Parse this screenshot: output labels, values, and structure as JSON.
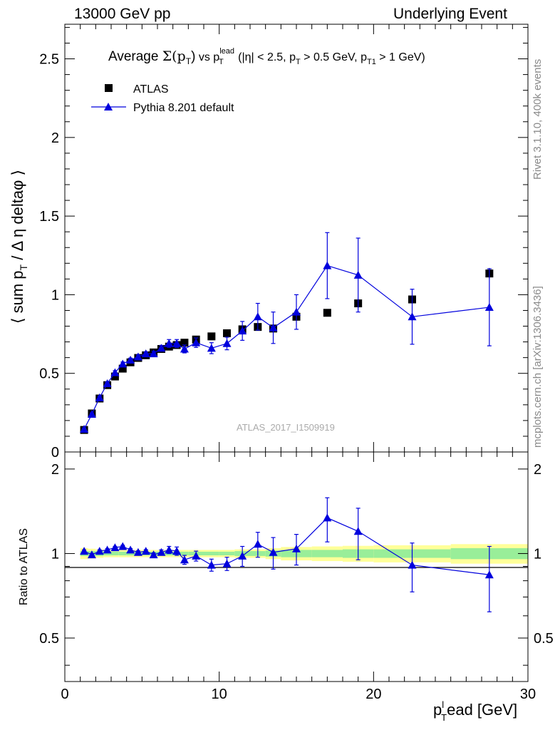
{
  "header": {
    "left": "13000 GeV pp",
    "right": "Underlying Event"
  },
  "side_labels": {
    "rivet": "Rivet 3.1.10,  400k events",
    "mcplots": "mcplots.cern.ch [arXiv:1306.3436]"
  },
  "chart_data": {
    "type": "scatter",
    "title_parts": {
      "pre": "Average ",
      "sigma": "Σ(p",
      "sigma_sub": "T",
      "sigma_close": ")",
      "vs": " vs p",
      "vs_sub": "T",
      "vs_sup": "lead",
      "cuts_1": " (|η| < 2.5, p",
      "cuts_1_sub": "T",
      "cuts_2": " > 0.5 GeV, p",
      "cuts_2_sub": "T1",
      "cuts_3": " > 1 GeV)"
    },
    "ylabel": "⟨ sum p_T / Δ η deltaφ ⟩",
    "ylabel_parts": {
      "pre": "⟨ sum p",
      "sub": "T",
      "post": " / Δ η deltaφ ⟩"
    },
    "xlabel_parts": {
      "main": "p",
      "sup": "l",
      "sub": "T",
      "post": "ead [GeV]"
    },
    "ratio_ylabel": "Ratio to ATLAS",
    "watermark": "ATLAS_2017_I1509919",
    "xlim": [
      0,
      30
    ],
    "ylim": [
      0,
      2.72
    ],
    "ratio_ylim": [
      0.35,
      2.3
    ],
    "x_ticks": [
      0,
      10,
      20,
      30
    ],
    "y_ticks": [
      0,
      0.5,
      1,
      1.5,
      2,
      2.5
    ],
    "y_tick_labels": [
      "0",
      "0.5",
      "1",
      "1.5",
      "2",
      "2.5"
    ],
    "ratio_ticks": [
      0.5,
      1,
      2
    ],
    "ratio_tick_labels": [
      "0.5",
      "1",
      "2"
    ],
    "legend_position": "top-left",
    "series": [
      {
        "name": "ATLAS",
        "marker": "square",
        "color": "#000000",
        "x": [
          1.25,
          1.75,
          2.25,
          2.75,
          3.25,
          3.75,
          4.25,
          4.75,
          5.25,
          5.75,
          6.25,
          6.75,
          7.25,
          7.75,
          8.5,
          9.5,
          10.5,
          11.5,
          12.5,
          13.5,
          15.0,
          17.0,
          19.0,
          22.5,
          27.5
        ],
        "y": [
          0.14,
          0.245,
          0.34,
          0.425,
          0.48,
          0.53,
          0.57,
          0.598,
          0.615,
          0.633,
          0.655,
          0.67,
          0.68,
          0.695,
          0.715,
          0.735,
          0.755,
          0.78,
          0.795,
          0.785,
          0.86,
          0.885,
          0.945,
          0.97,
          1.135
        ],
        "yerr": [
          0.005,
          0.005,
          0.005,
          0.005,
          0.005,
          0.005,
          0.005,
          0.005,
          0.005,
          0.005,
          0.005,
          0.008,
          0.008,
          0.008,
          0.01,
          0.01,
          0.01,
          0.015,
          0.015,
          0.02,
          0.025,
          0.02,
          0.03,
          0.03,
          0.035
        ]
      },
      {
        "name": "Pythia 8.201 default",
        "marker": "triangle",
        "color": "#0000dd",
        "x": [
          1.25,
          1.75,
          2.25,
          2.75,
          3.25,
          3.75,
          4.25,
          4.75,
          5.25,
          5.75,
          6.25,
          6.75,
          7.25,
          7.75,
          8.5,
          9.5,
          10.5,
          11.5,
          12.5,
          13.5,
          15.0,
          17.0,
          19.0,
          22.5,
          27.5
        ],
        "y": [
          0.145,
          0.24,
          0.345,
          0.435,
          0.505,
          0.56,
          0.585,
          0.605,
          0.625,
          0.625,
          0.66,
          0.69,
          0.69,
          0.655,
          0.695,
          0.66,
          0.69,
          0.77,
          0.86,
          0.79,
          0.89,
          1.185,
          1.125,
          0.86,
          0.92
        ],
        "yerr": [
          0.008,
          0.008,
          0.01,
          0.01,
          0.012,
          0.012,
          0.012,
          0.012,
          0.012,
          0.015,
          0.018,
          0.025,
          0.025,
          0.025,
          0.03,
          0.035,
          0.04,
          0.06,
          0.085,
          0.1,
          0.11,
          0.21,
          0.235,
          0.175,
          0.245
        ]
      }
    ],
    "ratio": {
      "x": [
        1.25,
        1.75,
        2.25,
        2.75,
        3.25,
        3.75,
        4.25,
        4.75,
        5.25,
        5.75,
        6.25,
        6.75,
        7.25,
        7.75,
        8.5,
        9.5,
        10.5,
        11.5,
        12.5,
        13.5,
        15.0,
        17.0,
        19.0,
        22.5,
        27.5
      ],
      "y": [
        1.02,
        0.99,
        1.02,
        1.03,
        1.05,
        1.06,
        1.03,
        1.01,
        1.02,
        0.99,
        1.01,
        1.03,
        1.02,
        0.95,
        0.98,
        0.91,
        0.92,
        0.98,
        1.08,
        1.01,
        1.04,
        1.34,
        1.2,
        0.91,
        0.84
      ],
      "yerr": [
        0.01,
        0.01,
        0.01,
        0.01,
        0.01,
        0.01,
        0.012,
        0.012,
        0.012,
        0.015,
        0.02,
        0.03,
        0.035,
        0.035,
        0.04,
        0.045,
        0.05,
        0.08,
        0.11,
        0.13,
        0.13,
        0.24,
        0.25,
        0.18,
        0.22
      ],
      "band_edges": [
        1,
        1.5,
        2,
        2.5,
        3,
        3.5,
        4,
        4.5,
        5,
        5.5,
        6,
        6.5,
        7,
        7.5,
        8,
        9,
        10,
        11,
        12,
        13,
        14,
        16,
        18,
        20,
        25,
        30
      ],
      "green_half": [
        0.02,
        0.02,
        0.02,
        0.015,
        0.015,
        0.015,
        0.015,
        0.015,
        0.015,
        0.015,
        0.015,
        0.015,
        0.015,
        0.015,
        0.015,
        0.015,
        0.015,
        0.02,
        0.02,
        0.025,
        0.03,
        0.03,
        0.035,
        0.035,
        0.045
      ],
      "yellow_half": [
        0.045,
        0.04,
        0.035,
        0.03,
        0.03,
        0.03,
        0.03,
        0.03,
        0.03,
        0.03,
        0.03,
        0.03,
        0.03,
        0.03,
        0.03,
        0.03,
        0.03,
        0.035,
        0.035,
        0.045,
        0.055,
        0.06,
        0.065,
        0.07,
        0.08
      ]
    }
  }
}
